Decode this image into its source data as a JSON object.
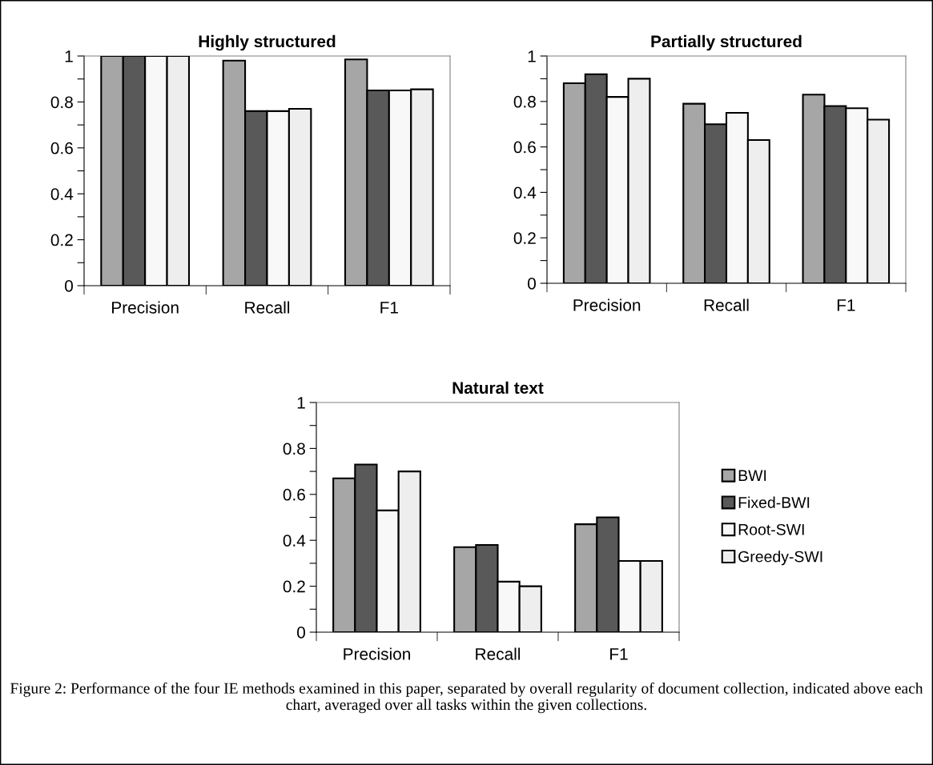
{
  "chart_data": [
    {
      "type": "bar",
      "title": "Highly structured",
      "categories": [
        "Precision",
        "Recall",
        "F1"
      ],
      "series": [
        {
          "color": "#a6a6a6",
          "values": [
            1.0,
            0.98,
            0.985
          ]
        },
        {
          "color": "#595959",
          "values": [
            1.0,
            0.76,
            0.85
          ]
        },
        {
          "color": "#f8f8f8",
          "values": [
            1.0,
            0.76,
            0.85
          ]
        },
        {
          "color": "#eeeeee",
          "values": [
            1.0,
            0.77,
            0.855
          ]
        }
      ],
      "ylim": [
        0,
        1
      ],
      "yticks": [
        0,
        {
          "value": 0.1,
          "label": null
        },
        0.2,
        {
          "value": 0.3,
          "label": null
        },
        0.4,
        {
          "value": 0.5,
          "label": null
        },
        0.6,
        {
          "value": 0.7,
          "label": null
        },
        0.8,
        {
          "value": 0.9,
          "label": null
        },
        1
      ],
      "grid": false
    },
    {
      "type": "bar",
      "title": "Partially structured",
      "categories": [
        "Precision",
        "Recall",
        "F1"
      ],
      "series": [
        {
          "color": "#a6a6a6",
          "values": [
            0.88,
            0.79,
            0.83
          ]
        },
        {
          "color": "#595959",
          "values": [
            0.92,
            0.7,
            0.78
          ]
        },
        {
          "color": "#f8f8f8",
          "values": [
            0.82,
            0.75,
            0.77
          ]
        },
        {
          "color": "#eeeeee",
          "values": [
            0.9,
            0.63,
            0.72
          ]
        }
      ],
      "ylim": [
        0,
        1
      ],
      "yticks": [
        0,
        {
          "value": 0.1,
          "label": null
        },
        0.2,
        {
          "value": 0.3,
          "label": null
        },
        0.4,
        {
          "value": 0.5,
          "label": null
        },
        0.6,
        {
          "value": 0.7,
          "label": null
        },
        0.8,
        {
          "value": 0.9,
          "label": null
        },
        1
      ],
      "grid": false
    },
    {
      "type": "bar",
      "title": "Natural text",
      "categories": [
        "Precision",
        "Recall",
        "F1"
      ],
      "series": [
        {
          "name": "BWI",
          "color": "#a6a6a6",
          "values": [
            0.67,
            0.37,
            0.47
          ]
        },
        {
          "name": "Fixed-BWI",
          "color": "#595959",
          "values": [
            0.73,
            0.38,
            0.5
          ]
        },
        {
          "name": "Root-SWI",
          "color": "#f8f8f8",
          "values": [
            0.53,
            0.22,
            0.31
          ]
        },
        {
          "name": "Greedy-SWI",
          "color": "#eeeeee",
          "values": [
            0.7,
            0.2,
            0.31
          ]
        }
      ],
      "ylim": [
        0,
        1
      ],
      "yticks": [
        0,
        {
          "value": 0.1,
          "label": null
        },
        0.2,
        {
          "value": 0.3,
          "label": null
        },
        0.4,
        {
          "value": 0.5,
          "label": null
        },
        0.6,
        {
          "value": 0.7,
          "label": null
        },
        0.8,
        {
          "value": 0.9,
          "label": null
        },
        1
      ],
      "grid": false,
      "legend": "right",
      "annotations": [
        "Figure 2: Performance of the four IE methods examined in this paper, separated by overall regularity of document collection, indicated above each chart, averaged over all tasks within the given collections."
      ]
    }
  ]
}
